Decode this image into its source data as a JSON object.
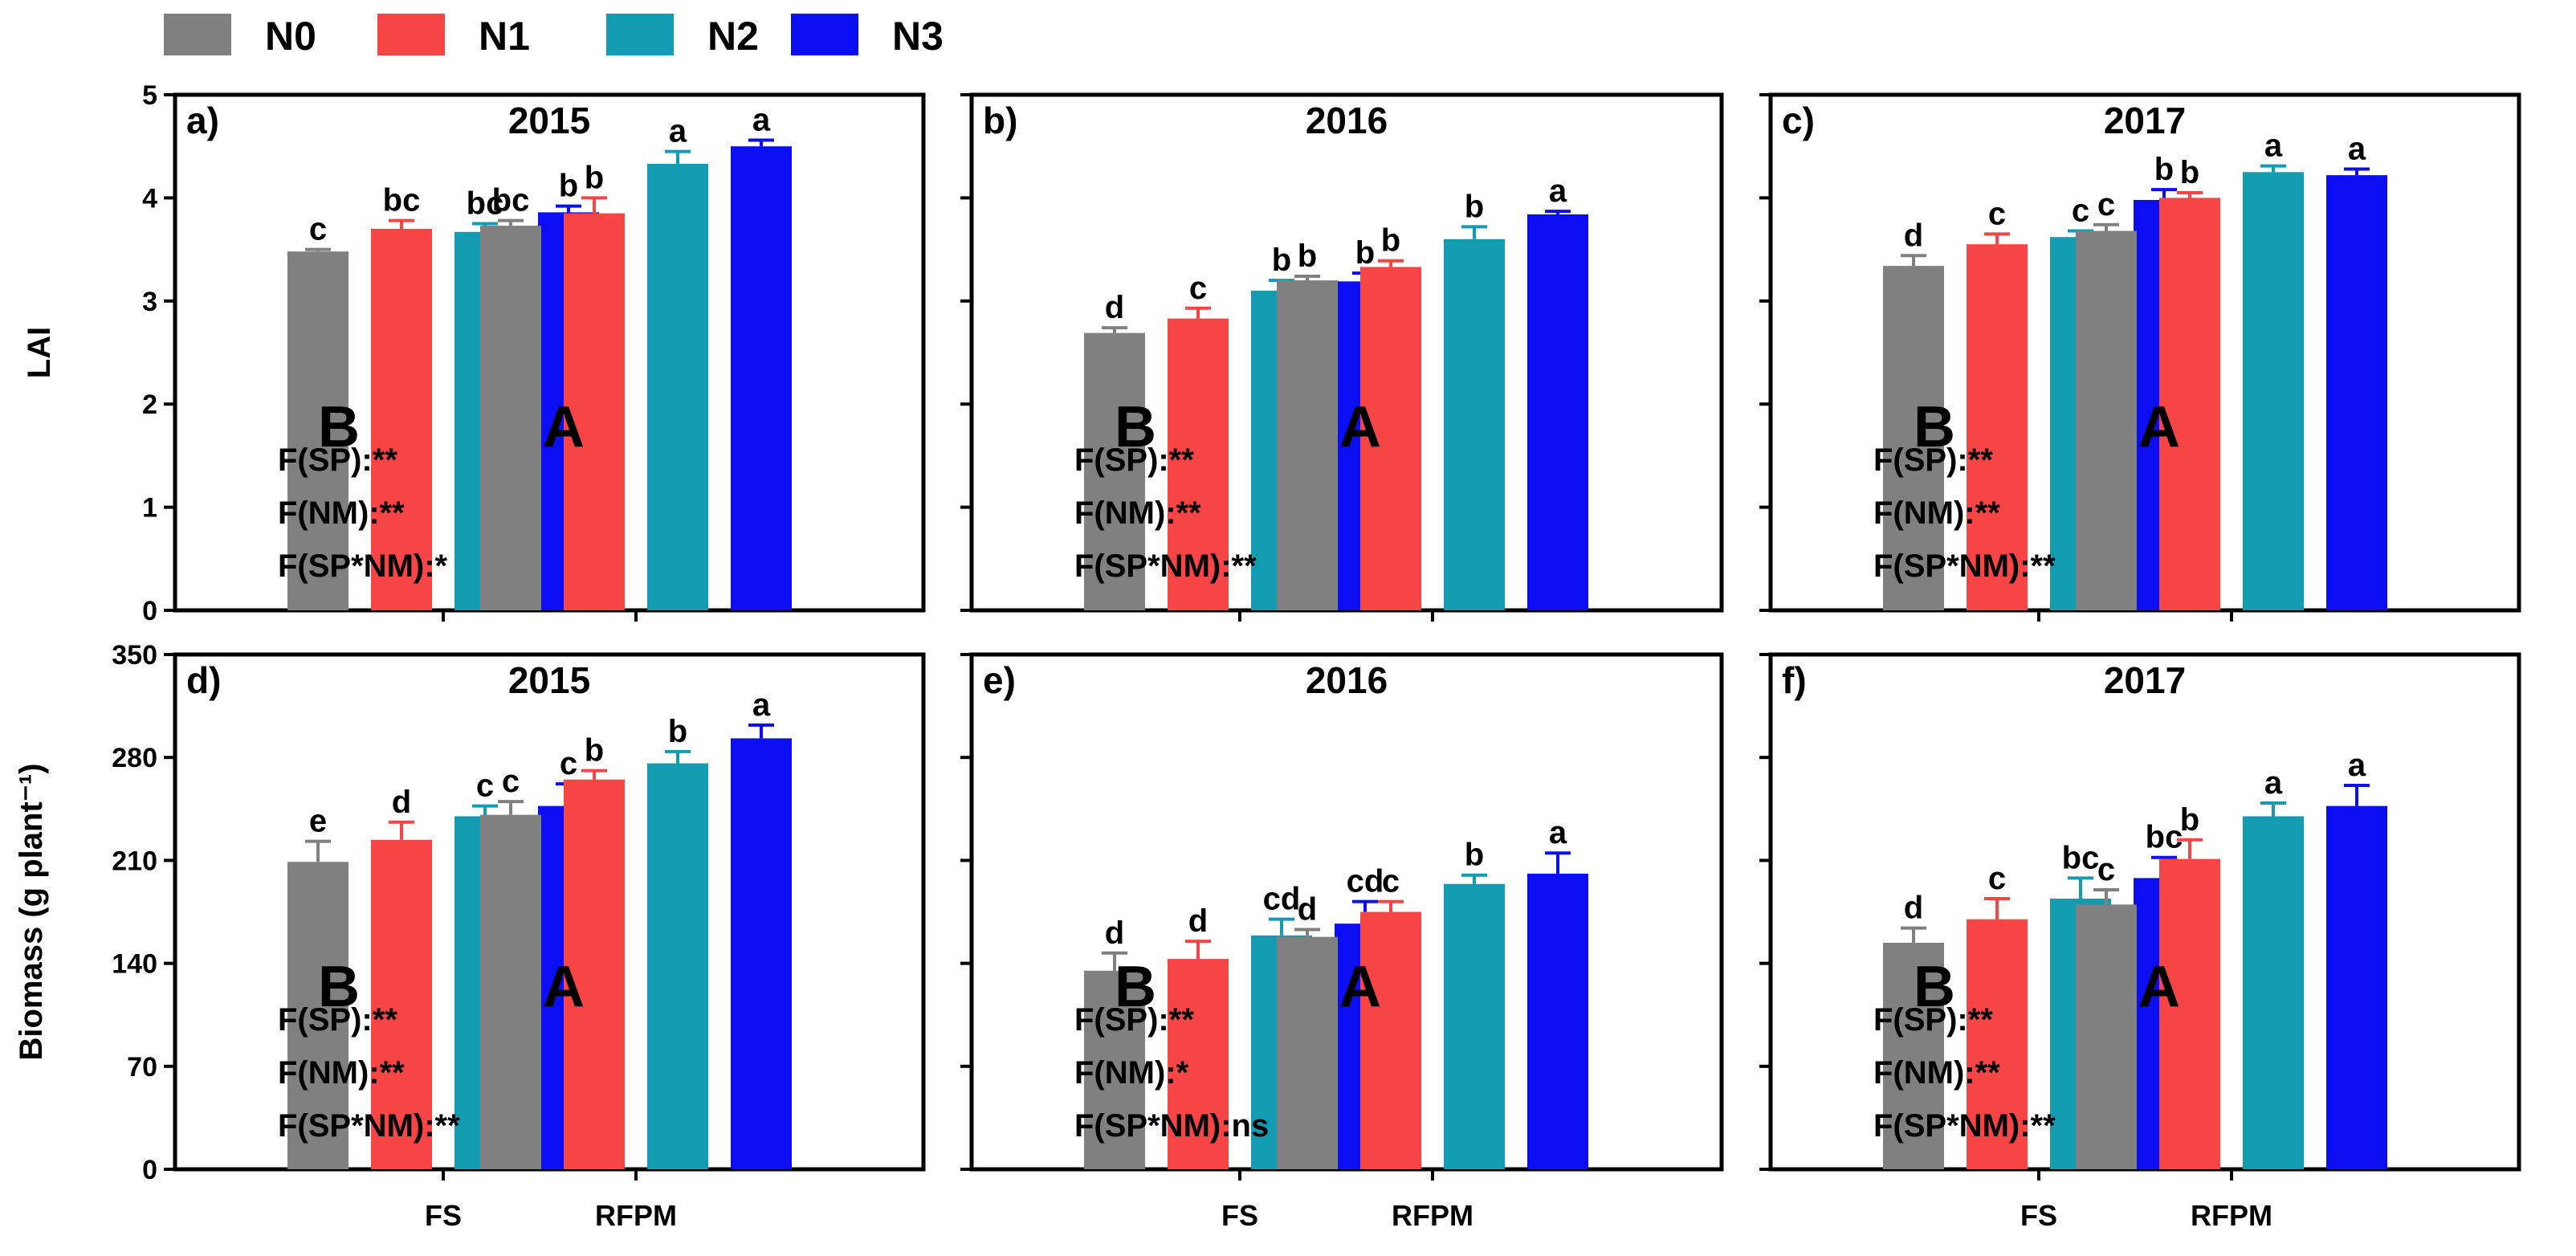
{
  "legend": [
    {
      "key": "N0",
      "label": "N0",
      "color": "#808080"
    },
    {
      "key": "N1",
      "label": "N1",
      "color": "#f74444"
    },
    {
      "key": "N2",
      "label": "N2",
      "color": "#139bb1"
    },
    {
      "key": "N3",
      "label": "N3",
      "color": "#0a0ef1"
    }
  ],
  "chart_data": [
    {
      "type": "bar",
      "panel": "a)",
      "title": "2015",
      "row": "LAI",
      "categories": [
        "FS",
        "RFPM"
      ],
      "series": [
        {
          "name": "N0",
          "values": [
            3.48,
            3.73
          ],
          "errors": [
            0.02,
            0.05
          ],
          "letters": [
            "c",
            "bc"
          ]
        },
        {
          "name": "N1",
          "values": [
            3.7,
            3.85
          ],
          "errors": [
            0.08,
            0.15
          ],
          "letters": [
            "bc",
            "b"
          ]
        },
        {
          "name": "N2",
          "values": [
            3.67,
            4.33
          ],
          "errors": [
            0.08,
            0.12
          ],
          "letters": [
            "bc",
            "a"
          ]
        },
        {
          "name": "N3",
          "values": [
            3.86,
            4.5
          ],
          "errors": [
            0.06,
            0.06
          ],
          "letters": [
            "b",
            "a"
          ]
        }
      ],
      "group_letters": [
        "B",
        "A"
      ],
      "stats": [
        "F(SP):**",
        "F(NM):**",
        "F(SP*NM):*"
      ],
      "ylabel": "LAI",
      "ylim": [
        0,
        5
      ],
      "yticks": [
        0,
        1,
        2,
        3,
        4,
        5
      ],
      "ytick_labels": [
        "0",
        "1",
        "2",
        "3",
        "4",
        "5"
      ]
    },
    {
      "type": "bar",
      "panel": "b)",
      "title": "2016",
      "row": "LAI",
      "categories": [
        "FS",
        "RFPM"
      ],
      "series": [
        {
          "name": "N0",
          "values": [
            2.69,
            3.2
          ],
          "errors": [
            0.05,
            0.04
          ],
          "letters": [
            "d",
            "b"
          ]
        },
        {
          "name": "N1",
          "values": [
            2.83,
            3.33
          ],
          "errors": [
            0.1,
            0.06
          ],
          "letters": [
            "c",
            "b"
          ]
        },
        {
          "name": "N2",
          "values": [
            3.1,
            3.6
          ],
          "errors": [
            0.1,
            0.12
          ],
          "letters": [
            "b",
            "b"
          ]
        },
        {
          "name": "N3",
          "values": [
            3.19,
            3.84
          ],
          "errors": [
            0.08,
            0.03
          ],
          "letters": [
            "b",
            "a"
          ]
        }
      ],
      "group_letters": [
        "B",
        "A"
      ],
      "stats": [
        "F(SP):**",
        "F(NM):**",
        "F(SP*NM):**"
      ],
      "ylabel": "",
      "ylim": [
        0,
        5
      ],
      "yticks": [
        0,
        1,
        2,
        3,
        4,
        5
      ],
      "ytick_labels": []
    },
    {
      "type": "bar",
      "panel": "c)",
      "title": "2017",
      "row": "LAI",
      "categories": [
        "FS",
        "RFPM"
      ],
      "series": [
        {
          "name": "N0",
          "values": [
            3.34,
            3.68
          ],
          "errors": [
            0.1,
            0.06
          ],
          "letters": [
            "d",
            "c"
          ]
        },
        {
          "name": "N1",
          "values": [
            3.55,
            4.0
          ],
          "errors": [
            0.1,
            0.05
          ],
          "letters": [
            "c",
            "b"
          ]
        },
        {
          "name": "N2",
          "values": [
            3.62,
            4.25
          ],
          "errors": [
            0.06,
            0.06
          ],
          "letters": [
            "c",
            "a"
          ]
        },
        {
          "name": "N3",
          "values": [
            3.98,
            4.22
          ],
          "errors": [
            0.1,
            0.06
          ],
          "letters": [
            "b",
            "a"
          ]
        }
      ],
      "group_letters": [
        "B",
        "A"
      ],
      "stats": [
        "F(SP):**",
        "F(NM):**",
        "F(SP*NM):**"
      ],
      "ylabel": "",
      "ylim": [
        0,
        5
      ],
      "yticks": [
        0,
        1,
        2,
        3,
        4,
        5
      ],
      "ytick_labels": []
    },
    {
      "type": "bar",
      "panel": "d)",
      "title": "2015",
      "row": "Biomass",
      "categories": [
        "FS",
        "RFPM"
      ],
      "series": [
        {
          "name": "N0",
          "values": [
            209,
            241
          ],
          "errors": [
            14,
            9
          ],
          "letters": [
            "e",
            "c"
          ]
        },
        {
          "name": "N1",
          "values": [
            224,
            265
          ],
          "errors": [
            12,
            6
          ],
          "letters": [
            "d",
            "b"
          ]
        },
        {
          "name": "N2",
          "values": [
            240,
            276
          ],
          "errors": [
            7,
            8
          ],
          "letters": [
            "c",
            "b"
          ]
        },
        {
          "name": "N3",
          "values": [
            247,
            293
          ],
          "errors": [
            15,
            9
          ],
          "letters": [
            "c",
            "a"
          ]
        }
      ],
      "group_letters": [
        "B",
        "A"
      ],
      "stats": [
        "F(SP):**",
        "F(NM):**",
        "F(SP*NM):**"
      ],
      "ylabel": "Biomass (g plant⁻¹)",
      "ylim": [
        0,
        350
      ],
      "yticks": [
        0,
        70,
        140,
        210,
        280,
        350
      ],
      "ytick_labels": [
        "0",
        "70",
        "140",
        "210",
        "280",
        "350"
      ]
    },
    {
      "type": "bar",
      "panel": "e)",
      "title": "2016",
      "row": "Biomass",
      "categories": [
        "FS",
        "RFPM"
      ],
      "series": [
        {
          "name": "N0",
          "values": [
            135,
            158
          ],
          "errors": [
            12,
            5
          ],
          "letters": [
            "d",
            "d"
          ]
        },
        {
          "name": "N1",
          "values": [
            143,
            175
          ],
          "errors": [
            12,
            7
          ],
          "letters": [
            "d",
            "c"
          ]
        },
        {
          "name": "N2",
          "values": [
            159,
            194
          ],
          "errors": [
            11,
            6
          ],
          "letters": [
            "cd",
            "b"
          ]
        },
        {
          "name": "N3",
          "values": [
            167,
            201
          ],
          "errors": [
            15,
            14
          ],
          "letters": [
            "cd",
            "a"
          ]
        }
      ],
      "group_letters": [
        "B",
        "A"
      ],
      "stats": [
        "F(SP):**",
        "F(NM):*",
        "F(SP*NM):ns"
      ],
      "ylabel": "",
      "ylim": [
        0,
        350
      ],
      "yticks": [
        0,
        70,
        140,
        210,
        280,
        350
      ],
      "ytick_labels": []
    },
    {
      "type": "bar",
      "panel": "f)",
      "title": "2017",
      "row": "Biomass",
      "categories": [
        "FS",
        "RFPM"
      ],
      "series": [
        {
          "name": "N0",
          "values": [
            154,
            180
          ],
          "errors": [
            10,
            10
          ],
          "letters": [
            "d",
            "c"
          ]
        },
        {
          "name": "N1",
          "values": [
            170,
            211
          ],
          "errors": [
            14,
            13
          ],
          "letters": [
            "c",
            "b"
          ]
        },
        {
          "name": "N2",
          "values": [
            184,
            240
          ],
          "errors": [
            14,
            9
          ],
          "letters": [
            "bc",
            "a"
          ]
        },
        {
          "name": "N3",
          "values": [
            198,
            247
          ],
          "errors": [
            14,
            14
          ],
          "letters": [
            "bc",
            "a"
          ]
        }
      ],
      "group_letters": [
        "B",
        "A"
      ],
      "stats": [
        "F(SP):**",
        "F(NM):**",
        "F(SP*NM):**"
      ],
      "ylabel": "",
      "ylim": [
        0,
        350
      ],
      "yticks": [
        0,
        70,
        140,
        210,
        280,
        350
      ],
      "ytick_labels": []
    }
  ]
}
